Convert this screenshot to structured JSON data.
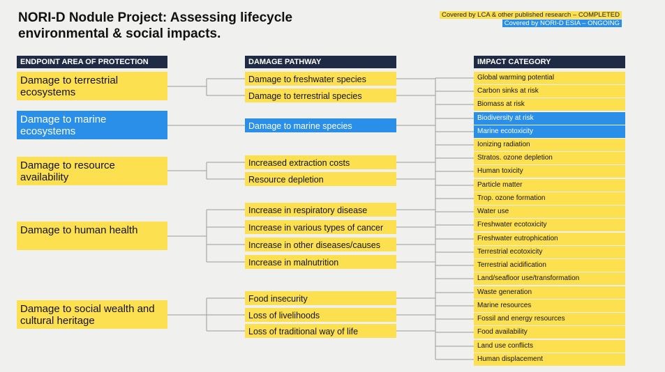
{
  "title": "NORI-D Nodule Project: Assessing lifecycle environmental & social impacts.",
  "legend": {
    "completed": "Covered by LCA & other published research – COMPLETED",
    "ongoing": "Covered by NORI-D ESIA – ONGOING"
  },
  "colors": {
    "completed": "#fde04f",
    "ongoing": "#2a8fe8",
    "header": "#1f2a44"
  },
  "columns": {
    "endpoint": "ENDPOINT AREA OF PROTECTION",
    "pathway": "DAMAGE PATHWAY",
    "impact": "IMPACT CATEGORY"
  },
  "endpoints": [
    {
      "label": "Damage to terrestrial ecosystems",
      "status": "completed"
    },
    {
      "label": "Damage to marine ecosystems",
      "status": "ongoing"
    },
    {
      "label": "Damage to resource availability",
      "status": "completed"
    },
    {
      "label": "Damage to human health",
      "status": "completed"
    },
    {
      "label": "Damage to social wealth and cultural heritage",
      "status": "completed"
    }
  ],
  "pathways": [
    {
      "label": "Damage to freshwater species",
      "status": "completed"
    },
    {
      "label": "Damage to terrestrial species",
      "status": "completed"
    },
    {
      "label": "Damage to marine species",
      "status": "ongoing"
    },
    {
      "label": "Increased extraction costs",
      "status": "completed"
    },
    {
      "label": "Resource depletion",
      "status": "completed"
    },
    {
      "label": "Increase in respiratory disease",
      "status": "completed"
    },
    {
      "label": "Increase in various types of cancer",
      "status": "completed"
    },
    {
      "label": "Increase in other diseases/causes",
      "status": "completed"
    },
    {
      "label": "Increase in malnutrition",
      "status": "completed"
    },
    {
      "label": "Food insecurity",
      "status": "completed"
    },
    {
      "label": "Loss of livelihoods",
      "status": "completed"
    },
    {
      "label": "Loss of traditional way of life",
      "status": "completed"
    }
  ],
  "impacts": [
    {
      "label": "Global warming potential",
      "status": "completed"
    },
    {
      "label": "Carbon sinks at risk",
      "status": "completed"
    },
    {
      "label": "Biomass at risk",
      "status": "completed"
    },
    {
      "label": "Biodiversity at risk",
      "status": "ongoing"
    },
    {
      "label": "Marine ecotoxicity",
      "status": "ongoing"
    },
    {
      "label": "Ionizing radiation",
      "status": "completed"
    },
    {
      "label": "Stratos. ozone depletion",
      "status": "completed"
    },
    {
      "label": "Human toxicity",
      "status": "completed"
    },
    {
      "label": "Particle matter",
      "status": "completed"
    },
    {
      "label": "Trop. ozone formation",
      "status": "completed"
    },
    {
      "label": "Water use",
      "status": "completed"
    },
    {
      "label": "Freshwater ecotoxicity",
      "status": "completed"
    },
    {
      "label": "Freshwater eutrophication",
      "status": "completed"
    },
    {
      "label": "Terrestrial ecotoxicity",
      "status": "completed"
    },
    {
      "label": "Terrestrial acidification",
      "status": "completed"
    },
    {
      "label": "Land/seafloor use/transformation",
      "status": "completed"
    },
    {
      "label": "Waste generation",
      "status": "completed"
    },
    {
      "label": "Marine resources",
      "status": "completed"
    },
    {
      "label": "Fossil and energy resources",
      "status": "completed"
    },
    {
      "label": "Food availability",
      "status": "completed"
    },
    {
      "label": "Land use conflicts",
      "status": "completed"
    },
    {
      "label": "Human displacement",
      "status": "completed"
    }
  ]
}
